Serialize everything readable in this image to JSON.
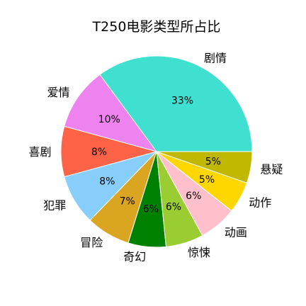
{
  "chart_data": {
    "type": "pie",
    "title": "T250电影类型所占比",
    "categories": [
      "剧情",
      "爱情",
      "喜剧",
      "犯罪",
      "冒险",
      "奇幻",
      "惊悚",
      "动画",
      "动作",
      "悬疑"
    ],
    "values": [
      33,
      10,
      8,
      8,
      7,
      6,
      6,
      6,
      5,
      5
    ],
    "value_labels": [
      "33%",
      "10%",
      "8%",
      "8%",
      "7%",
      "6%",
      "6%",
      "6%",
      "5%",
      "5%"
    ],
    "colors": [
      "#40E0D0",
      "#EE82EE",
      "#FF6347",
      "#87CEFA",
      "#DAA520",
      "#008000",
      "#9ACD32",
      "#FFC0CB",
      "#FFD700",
      "#C0B800"
    ],
    "start_angle_deg": 0,
    "direction": "counterclockwise"
  }
}
